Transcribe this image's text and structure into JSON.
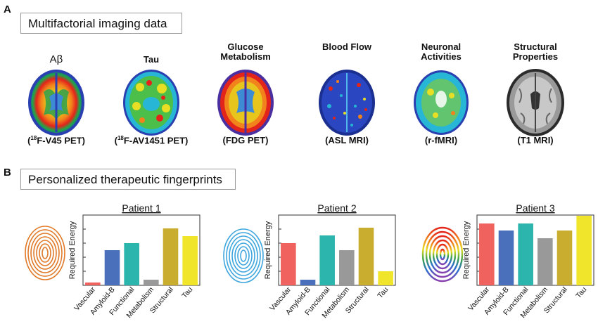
{
  "panel_a": {
    "letter": "A",
    "heading": "Multifactorial imaging data",
    "scans": [
      {
        "title": "Aβ",
        "caption_pre": "(",
        "caption_sup": "18",
        "caption_post": "F-V45 PET)"
      },
      {
        "title": "Tau",
        "caption_pre": "(",
        "caption_sup": "18",
        "caption_post": "F-AV1451 PET)"
      },
      {
        "title": "Glucose Metabolism",
        "caption": "(FDG PET)"
      },
      {
        "title": "Blood Flow",
        "caption": "(ASL MRI)"
      },
      {
        "title": "Neuronal Activities",
        "caption": "(r-fMRI)"
      },
      {
        "title": "Structural Properties",
        "caption": "(T1 MRI)"
      }
    ]
  },
  "panel_b": {
    "letter": "B",
    "heading": "Personalized therapeutic fingerprints"
  },
  "colors": {
    "Vascular": "#f0625e",
    "Amyloid-B": "#4a6fbb",
    "Functional": "#2bb5ad",
    "Metabolism": "#999999",
    "Structural": "#c8ad2e",
    "Tau": "#f1e52b"
  },
  "chart_data": [
    {
      "type": "bar",
      "title": "Patient 1",
      "ylabel": "Required Energy",
      "categories": [
        "Vascular",
        "Amyloid-B",
        "Functional",
        "Metabolism",
        "Structural",
        "Tau"
      ],
      "values": [
        0.04,
        0.5,
        0.6,
        0.08,
        0.81,
        0.7
      ],
      "ylim": [
        0,
        1
      ]
    },
    {
      "type": "bar",
      "title": "Patient 2",
      "ylabel": "Required Energy",
      "categories": [
        "Vascular",
        "Amyloid-B",
        "Functional",
        "Metabolism",
        "Structural",
        "Tau"
      ],
      "values": [
        0.6,
        0.08,
        0.71,
        0.5,
        0.82,
        0.2
      ],
      "ylim": [
        0,
        1
      ]
    },
    {
      "type": "bar",
      "title": "Patient 3",
      "ylabel": "Required Energy",
      "categories": [
        "Vascular",
        "Amyloid-B",
        "Functional",
        "Metabolism",
        "Structural",
        "Tau"
      ],
      "values": [
        0.88,
        0.78,
        0.88,
        0.67,
        0.78,
        0.99
      ],
      "ylim": [
        0,
        1
      ]
    }
  ]
}
